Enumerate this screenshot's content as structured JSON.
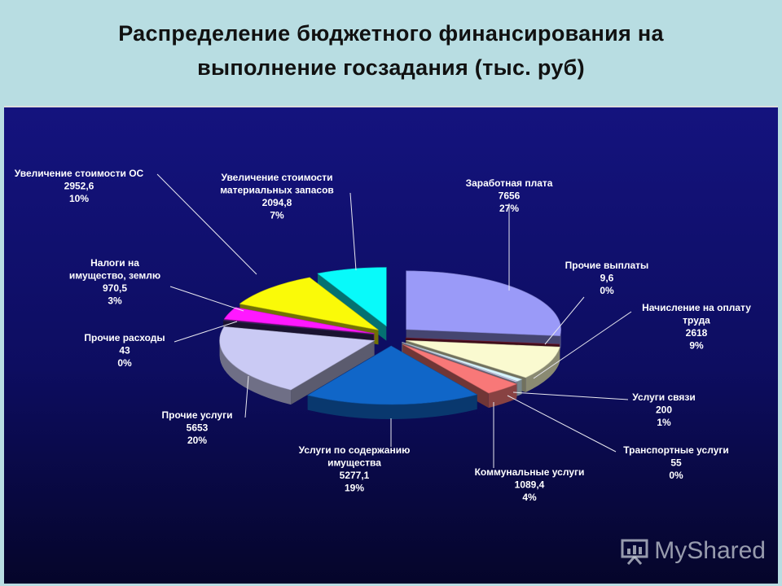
{
  "title_line1": "Распределение бюджетного финансирования на",
  "title_line2": "выполнение госзадания (тыс. руб)",
  "watermark_text": "MyShared",
  "chart_data": {
    "type": "pie",
    "title": "Распределение бюджетного финансирования на выполнение госзадания (тыс. руб)",
    "legend": "none",
    "start_angle": -90,
    "slices": [
      {
        "name": "Заработная плата",
        "label_lines": [
          "Заработная плата"
        ],
        "value": 7656,
        "value_text": "7656",
        "percent": "27%",
        "color": "#9a9af8"
      },
      {
        "name": "Прочие выплаты",
        "label_lines": [
          "Прочие выплаты"
        ],
        "value": 9.6,
        "value_text": "9,6",
        "percent": "0%",
        "color": "#8c1c3a"
      },
      {
        "name": "Начисление на оплату труда",
        "label_lines": [
          "Начисление на оплату",
          "труда"
        ],
        "value": 2618,
        "value_text": "2618",
        "percent": "9%",
        "color": "#fafad0"
      },
      {
        "name": "Услуги связи",
        "label_lines": [
          "Услуги связи"
        ],
        "value": 200,
        "value_text": "200",
        "percent": "1%",
        "color": "#d8f4fc"
      },
      {
        "name": "Транспортные услуги",
        "label_lines": [
          "Транспортные услуги"
        ],
        "value": 55,
        "value_text": "55",
        "percent": "0%",
        "color": "#d4d4f6"
      },
      {
        "name": "Коммунальные услуги",
        "label_lines": [
          "Коммунальные услуги"
        ],
        "value": 1089.4,
        "value_text": "1089,4",
        "percent": "4%",
        "color": "#f87878"
      },
      {
        "name": "Услуги по содержанию имущества",
        "label_lines": [
          "Услуги по содержанию",
          "имущества"
        ],
        "value": 5277.1,
        "value_text": "5277,1",
        "percent": "19%",
        "color": "#1066c8"
      },
      {
        "name": "Прочие услуги",
        "label_lines": [
          "Прочие услуги"
        ],
        "value": 5653,
        "value_text": "5653",
        "percent": "20%",
        "color": "#cacaf4"
      },
      {
        "name": "Прочие расходы",
        "label_lines": [
          "Прочие расходы"
        ],
        "value": 43,
        "value_text": "43",
        "percent": "0%",
        "color": "#3a2a6a"
      },
      {
        "name": "Налоги на имущество, землю",
        "label_lines": [
          "Налоги на",
          "имущество, землю"
        ],
        "value": 970.5,
        "value_text": "970,5",
        "percent": "3%",
        "color": "#ff18ff"
      },
      {
        "name": "Увеличение стоимости ОС",
        "label_lines": [
          "Увеличение стоимости ОС"
        ],
        "value": 2952.6,
        "value_text": "2952,6",
        "percent": "10%",
        "color": "#fafa08"
      },
      {
        "name": "Увеличение стоимости материальных запасов",
        "label_lines": [
          "Увеличение стоимости",
          "материальных запасов"
        ],
        "value": 2094.8,
        "value_text": "2094,8",
        "percent": "7%",
        "color": "#08fafa"
      }
    ]
  }
}
